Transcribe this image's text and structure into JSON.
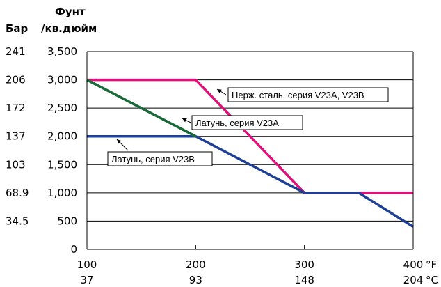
{
  "chart_data": {
    "type": "line",
    "title": "",
    "xlabel": "",
    "ylabel": "",
    "x_unit_primary": "°F",
    "x_unit_secondary": "°C",
    "y_header_primary": "Фунт",
    "y_header_primary_2": "/кв.дюйм",
    "y_header_secondary": "Бар",
    "xlim": [
      100,
      400
    ],
    "ylim": [
      0,
      3500
    ],
    "x_ticks": [
      100,
      200,
      300,
      400
    ],
    "x_tick_labels": [
      "100",
      "200",
      "300",
      "400"
    ],
    "x_tick_labels_secondary": [
      "37",
      "93",
      "148",
      "204"
    ],
    "y_ticks": [
      0,
      500,
      1000,
      1500,
      2000,
      2500,
      3000,
      3500
    ],
    "y_tick_labels": [
      "0",
      "500",
      "1,000",
      "1,500",
      "2,000",
      "2,500",
      "3,000",
      "3,500"
    ],
    "y_tick_labels_secondary": [
      "",
      "34.5",
      "68.9",
      "103",
      "137",
      "172",
      "206",
      "241"
    ],
    "grid": "horizontal",
    "series": [
      {
        "name": "Нерж. сталь, серия V23A, V23B",
        "color": "#e0107a",
        "x": [
          100,
          200,
          300,
          400
        ],
        "y": [
          3000,
          3000,
          1000,
          1000
        ]
      },
      {
        "name": "Латунь, серия V23A",
        "color": "#1b6b3a",
        "x": [
          100,
          200
        ],
        "y": [
          3000,
          2000
        ]
      },
      {
        "name": "Латунь, серия V23B",
        "color": "#1d3f95",
        "x": [
          100,
          200,
          300,
          350,
          400
        ],
        "y": [
          2000,
          2000,
          1000,
          1000,
          400
        ]
      }
    ]
  }
}
